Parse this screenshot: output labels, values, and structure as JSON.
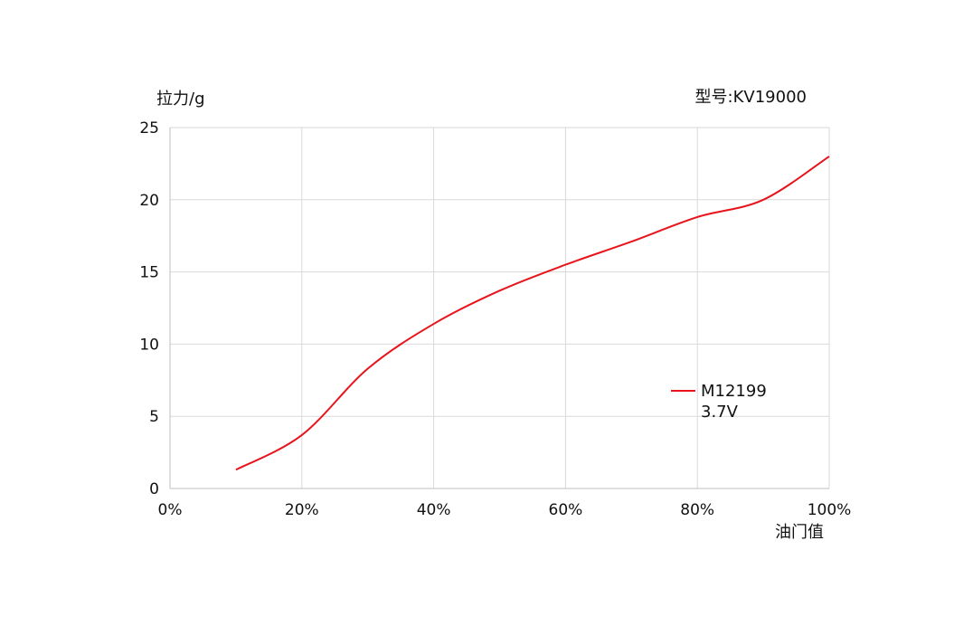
{
  "chart_data": {
    "type": "line",
    "ylabel": "拉力/g",
    "xlabel": "油门值",
    "model_label": "型号:KV19000",
    "xlim": [
      0,
      100
    ],
    "ylim": [
      0,
      25
    ],
    "x_ticks": [
      0,
      20,
      40,
      60,
      80,
      100
    ],
    "x_tick_labels": [
      "0%",
      "20%",
      "40%",
      "60%",
      "80%",
      "100%"
    ],
    "y_ticks": [
      0,
      5,
      10,
      15,
      20,
      25
    ],
    "y_tick_labels": [
      "0",
      "5",
      "10",
      "15",
      "20",
      "25"
    ],
    "grid": true,
    "legend_placement": "right",
    "series": [
      {
        "name": "M12199",
        "name_line2": "3.7V",
        "color": "#e8141b",
        "x": [
          10,
          20,
          30,
          40,
          50,
          60,
          70,
          80,
          90,
          100
        ],
        "y": [
          1.3,
          3.7,
          8.3,
          11.4,
          13.7,
          15.5,
          17.1,
          18.8,
          20.0,
          23.0
        ]
      }
    ]
  }
}
